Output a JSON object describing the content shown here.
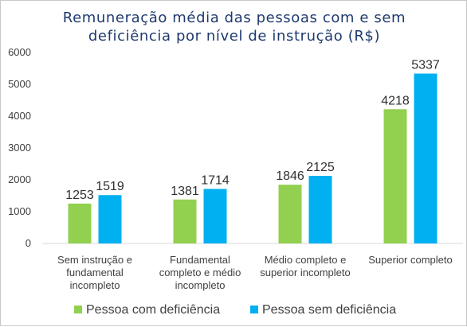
{
  "chart_data": {
    "type": "bar",
    "title_lines": [
      "Remuneração média das pessoas com e sem",
      "deficiência por nível de instrução (R$)"
    ],
    "categories": [
      [
        "Sem instrução e",
        "fundamental",
        "incompleto"
      ],
      [
        "Fundamental",
        "completo e médio",
        "incompleto"
      ],
      [
        "Médio completo e",
        "superior incompleto"
      ],
      [
        "Superior completo"
      ]
    ],
    "series": [
      {
        "name": "Pessoa com deficiência",
        "color": "#92d050",
        "values": [
          1253,
          1381,
          1846,
          4218
        ]
      },
      {
        "name": "Pessoa sem deficiência",
        "color": "#00b0f0",
        "values": [
          1519,
          1714,
          2125,
          5337
        ]
      }
    ],
    "ylim": [
      0,
      6000
    ],
    "yticks": [
      0,
      1000,
      2000,
      3000,
      4000,
      5000,
      6000
    ],
    "grid": false,
    "legend_position": "bottom"
  }
}
